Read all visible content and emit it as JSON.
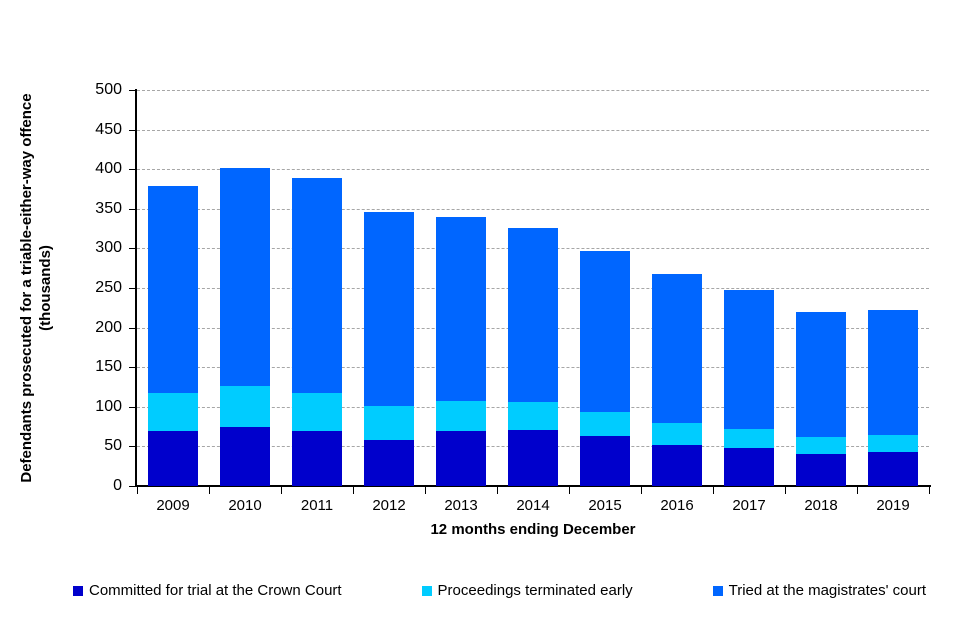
{
  "chart_data": {
    "type": "bar",
    "stacked": true,
    "title": "",
    "xlabel": "12 months ending December",
    "ylabel_line1": "Defendants prosecuted for a triable-either-way offence",
    "ylabel_line2": "(thousands)",
    "categories": [
      "2009",
      "2010",
      "2011",
      "2012",
      "2013",
      "2014",
      "2015",
      "2016",
      "2017",
      "2018",
      "2019"
    ],
    "series": [
      {
        "key": "crown-court",
        "name": "Committed for trial at the Crown Court",
        "color": "#0000CC",
        "values": [
          70,
          75,
          70,
          58,
          70,
          71,
          63,
          52,
          48,
          40,
          43
        ]
      },
      {
        "key": "terminated-early",
        "name": "Proceedings terminated early",
        "color": "#00CCFF",
        "values": [
          48,
          51,
          48,
          43,
          37,
          35,
          31,
          28,
          24,
          22,
          21
        ]
      },
      {
        "key": "magistrates-court",
        "name": "Tried at the magistrates' court",
        "color": "#0066FF",
        "values": [
          261,
          276,
          271,
          245,
          233,
          220,
          203,
          188,
          176,
          158,
          158
        ]
      }
    ],
    "totals": [
      379,
      402,
      389,
      346,
      340,
      326,
      297,
      268,
      248,
      220,
      222
    ],
    "ylim": [
      0,
      500
    ],
    "ytick_step": 50,
    "yticks": [
      "0",
      "50",
      "100",
      "150",
      "200",
      "250",
      "300",
      "350",
      "400",
      "450",
      "500"
    ],
    "grid": "horizontal-dashed",
    "legend_position": "bottom"
  },
  "colors": {
    "background": "#FFFFFF",
    "axis": "#000000",
    "gridline": "#A6A6A6"
  }
}
